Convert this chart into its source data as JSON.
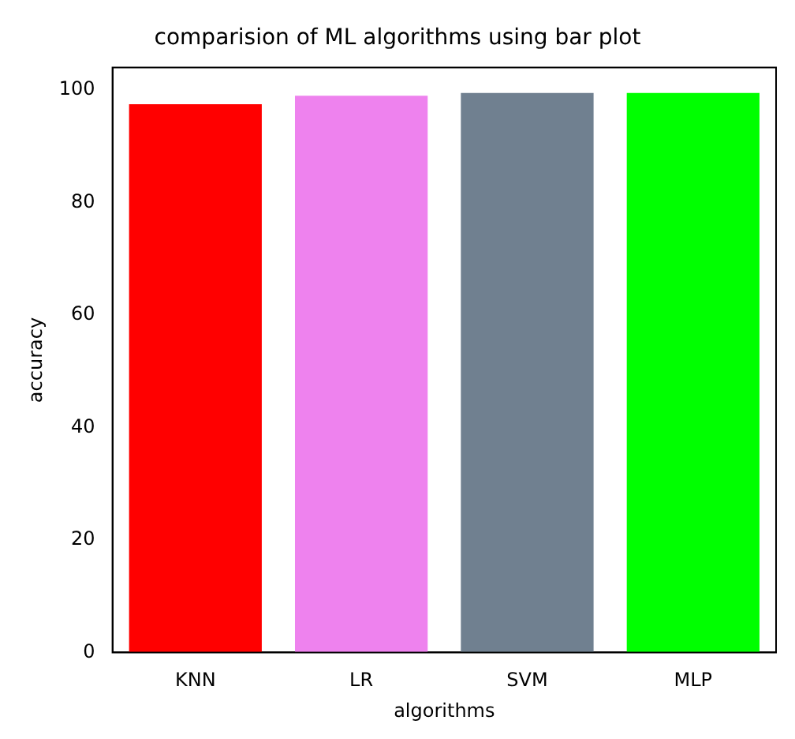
{
  "chart_data": {
    "type": "bar",
    "title": "comparision of ML algorithms using bar plot",
    "xlabel": "algorithms",
    "ylabel": "accuracy",
    "categories": [
      "KNN",
      "LR",
      "SVM",
      "MLP"
    ],
    "values": [
      97.5,
      99,
      99.5,
      99.5
    ],
    "colors": [
      "#ff0000",
      "#ee82ee",
      "#708090",
      "#00ff00"
    ],
    "ylim": [
      0,
      104
    ],
    "yticks": [
      0,
      20,
      40,
      60,
      80,
      100
    ],
    "grid": false,
    "legend": false
  }
}
